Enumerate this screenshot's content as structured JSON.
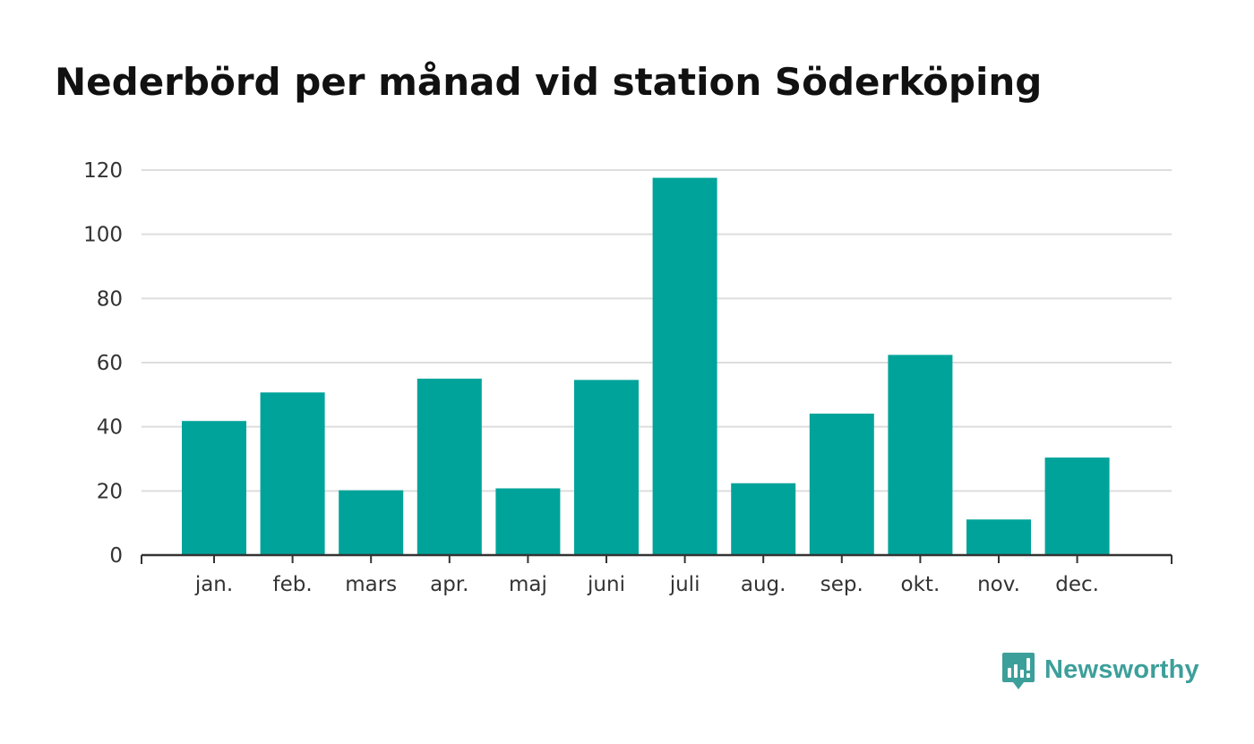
{
  "chart_data": {
    "type": "bar",
    "title": "Nederbörd per månad vid station Söderköping",
    "categories": [
      "jan.",
      "feb.",
      "mars",
      "apr.",
      "maj",
      "juni",
      "juli",
      "aug.",
      "sep.",
      "okt.",
      "nov.",
      "dec."
    ],
    "values": [
      41.8,
      50.7,
      20.2,
      55.0,
      20.8,
      54.6,
      117.6,
      22.4,
      44.1,
      62.4,
      11.1,
      30.4
    ],
    "xlabel": "",
    "ylabel": "",
    "ylim": [
      0,
      120
    ],
    "yticks": [
      "0",
      "20",
      "40",
      "60",
      "80",
      "100",
      "120"
    ],
    "grid": true,
    "legend": "none",
    "colors": {
      "bar": "#00a39a",
      "grid": "#dddddd",
      "axis": "#333333"
    }
  },
  "brand": {
    "name": "Newsworthy",
    "icon": "newsworthy-logo-icon",
    "color": "#3d9f9a"
  }
}
